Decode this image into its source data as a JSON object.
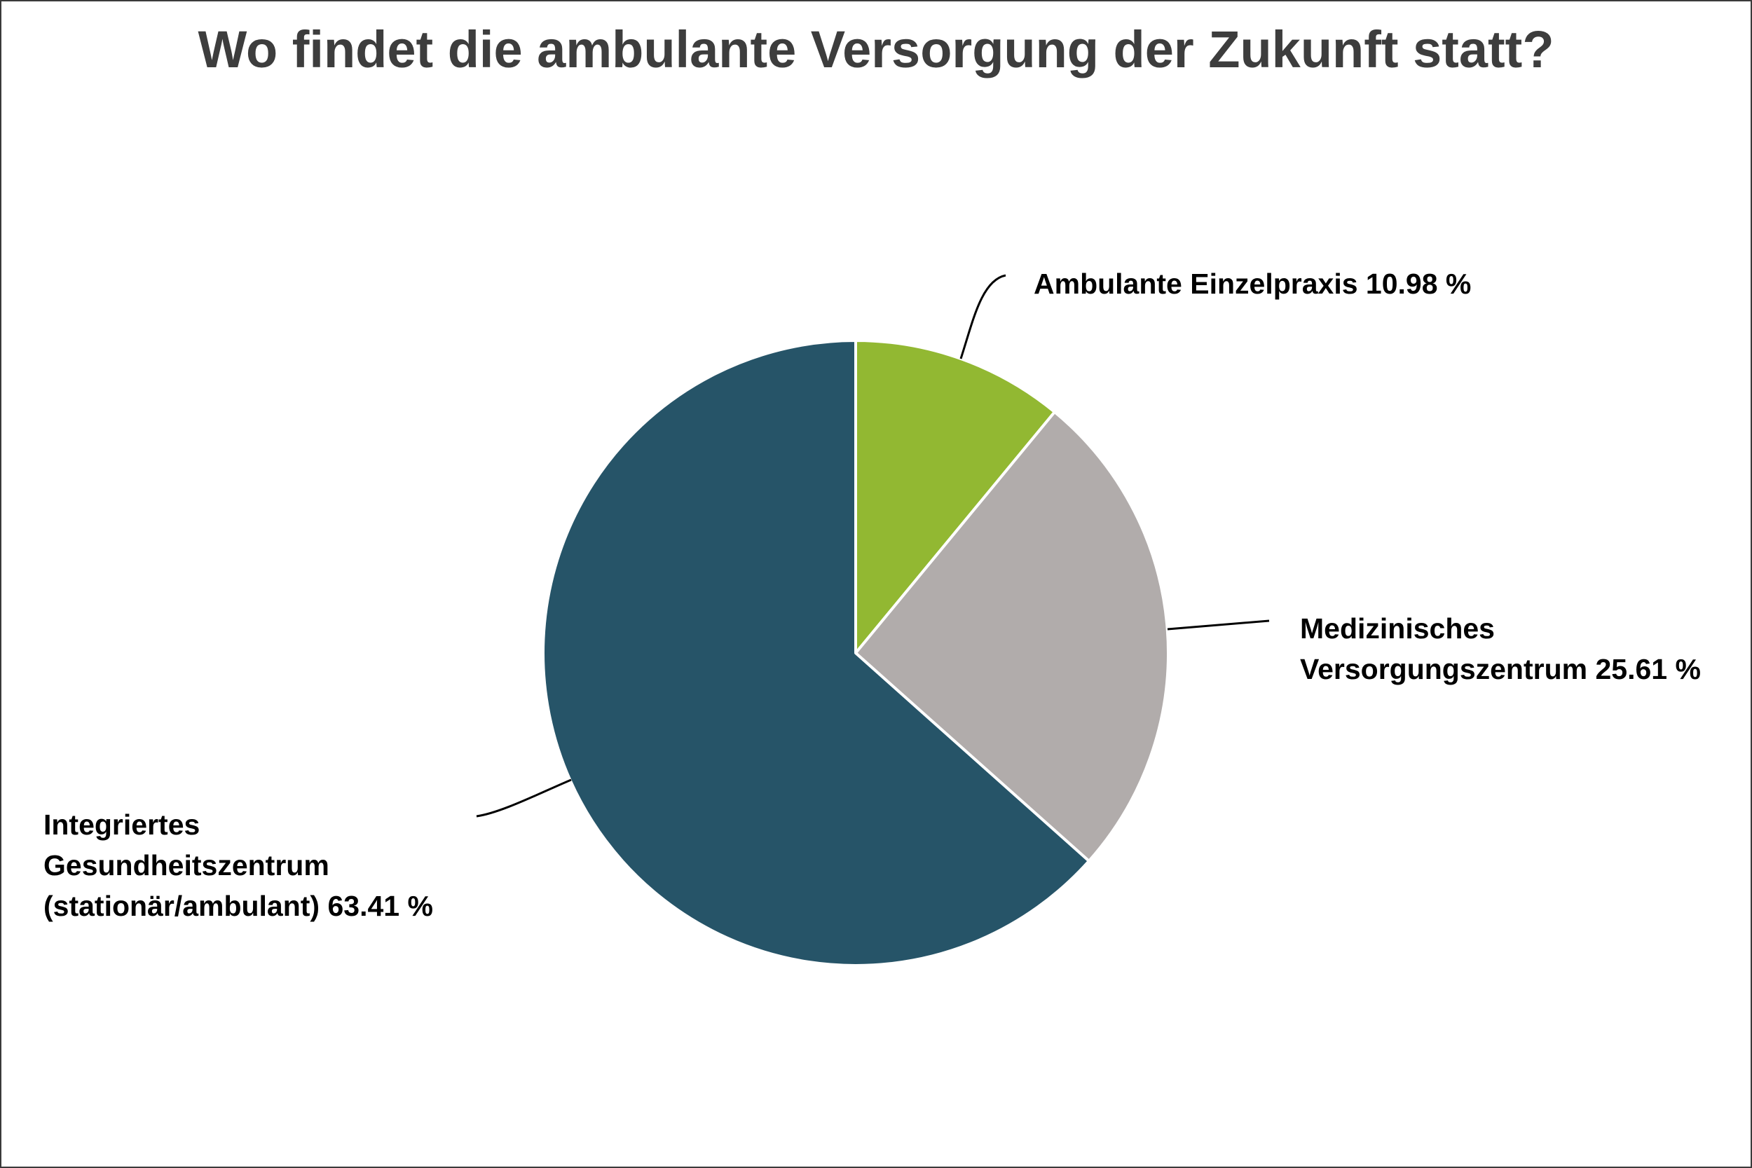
{
  "chart_data": {
    "type": "pie",
    "title": "Wo findet die ambulante Versorgung der Zukunft statt?",
    "unit": "%",
    "slices": [
      {
        "label": "Ambulante Einzelpraxis",
        "value": 10.98,
        "display": "Ambulante Einzelpraxis 10.98 %",
        "color": "#92b832"
      },
      {
        "label": "Medizinisches Versorgungszentrum",
        "value": 25.61,
        "display": "Medizinisches Versorgungszentrum 25.61 %",
        "color": "#b1acab"
      },
      {
        "label": "Integriertes Gesundheitszentrum (stationär/ambulant)",
        "value": 63.41,
        "display": "Integriertes Gesundheitszentrum (stationär/ambulant) 63.41 %",
        "color": "#265468"
      }
    ],
    "slice_border_color": "#ffffff",
    "start_angle": "12 o'clock",
    "direction": "clockwise",
    "legend": "none"
  }
}
